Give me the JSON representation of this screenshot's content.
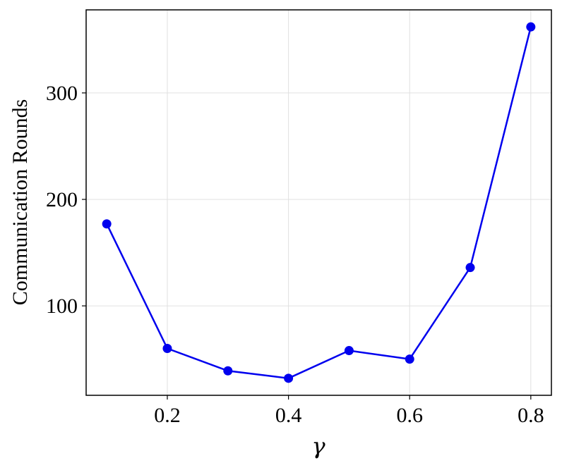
{
  "chart_data": {
    "type": "line",
    "xlabel": "γ",
    "ylabel": "Communication Rounds",
    "x": [
      0.1,
      0.2,
      0.3,
      0.4,
      0.5,
      0.6,
      0.7,
      0.8
    ],
    "values": [
      177,
      60,
      39,
      32,
      58,
      50,
      136,
      362
    ],
    "color": "#0000ee",
    "xlim": [
      0.066,
      0.834
    ],
    "xticks": [
      0.2,
      0.4,
      0.6,
      0.8
    ],
    "ylim": [
      16,
      378
    ],
    "yticks": [
      100,
      200,
      300
    ],
    "grid": true
  }
}
